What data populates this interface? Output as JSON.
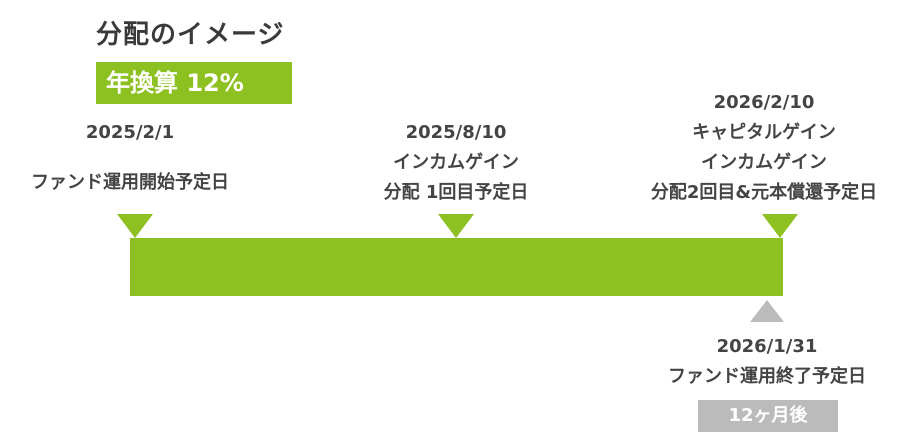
{
  "title": "分配のイメージ",
  "rate_badge": "年換算 12%",
  "milestones": [
    {
      "date": "2025/2/1",
      "lines": [
        "ファンド運用開始予定日"
      ]
    },
    {
      "date": "2025/8/10",
      "lines": [
        "インカムゲイン",
        "分配 1回目予定日"
      ]
    },
    {
      "date": "2026/2/10",
      "lines": [
        "キャピタルゲイン",
        "インカムゲイン",
        "分配2回目&元本償還予定日"
      ]
    }
  ],
  "end_milestone": {
    "date": "2026/1/31",
    "line": "ファンド運用終了予定日"
  },
  "period_badge": "12ヶ月後",
  "colors": {
    "accent": "#8dc021",
    "muted": "#bbbbbb",
    "text": "#444444"
  }
}
